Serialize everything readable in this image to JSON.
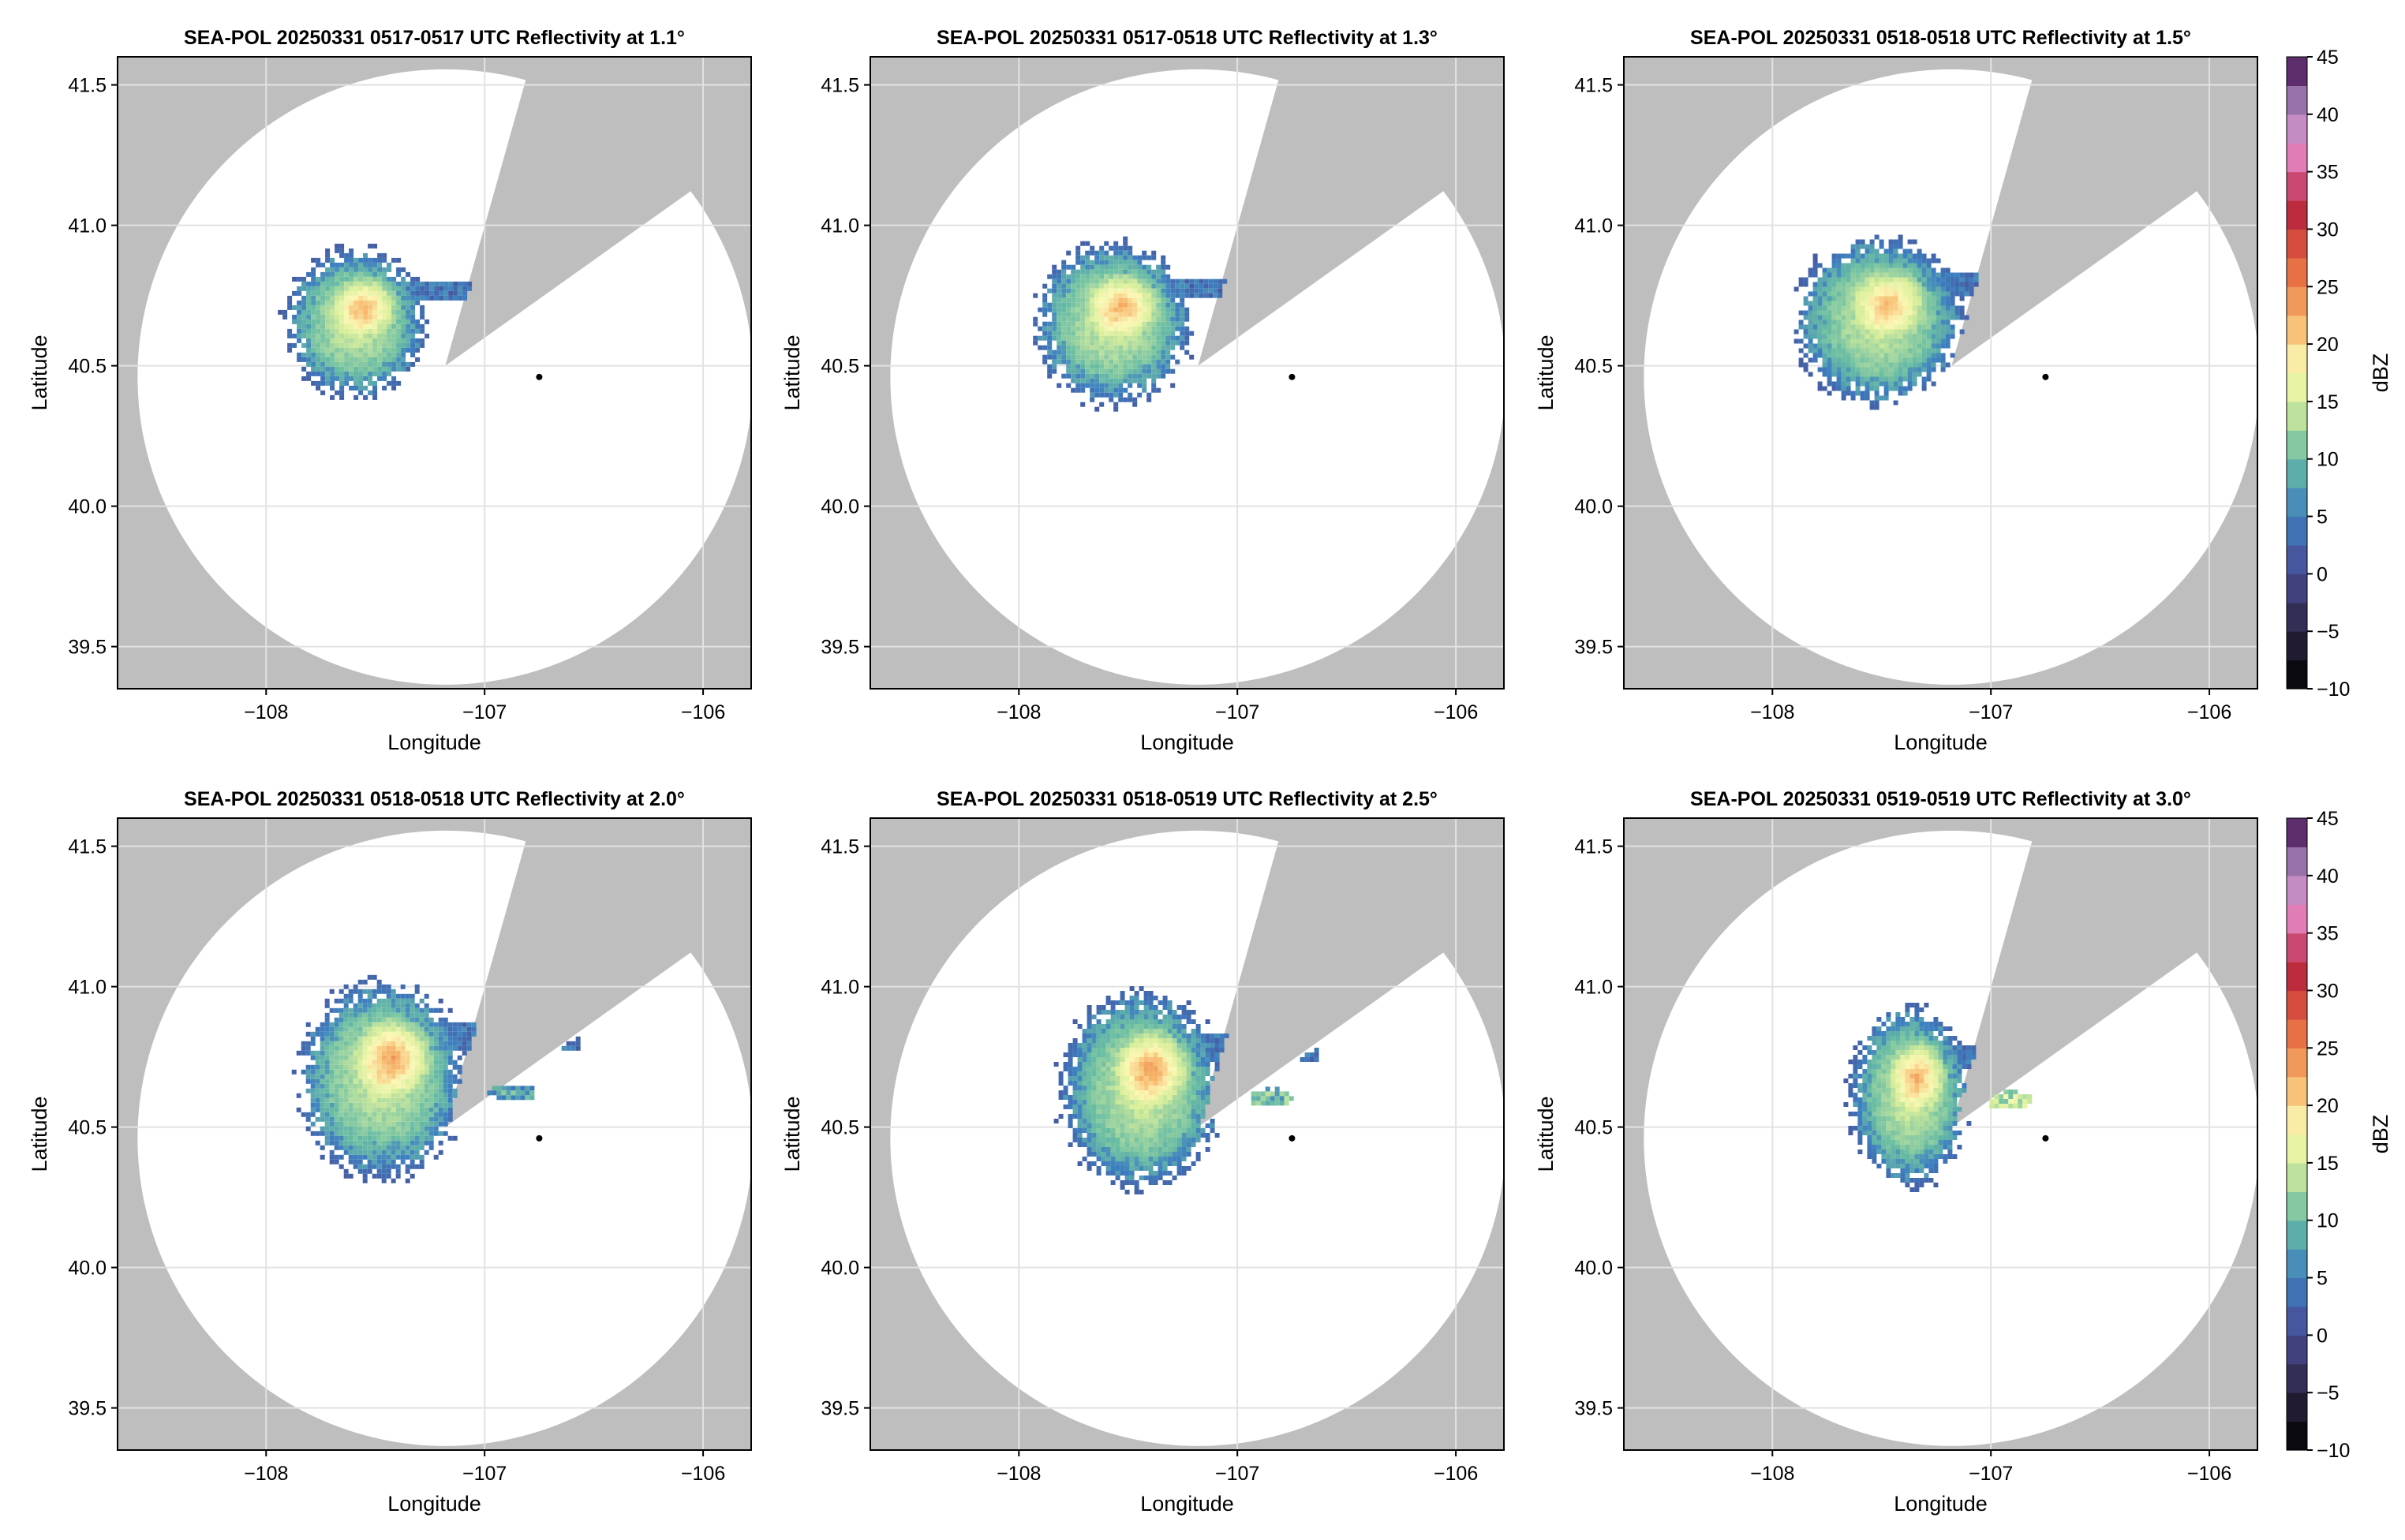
{
  "chart_data": [
    {
      "type": "heatmap",
      "title": "SEA-POL 20250331 0517-0517 UTC Reflectivity at 1.1°",
      "xlabel": "Longitude",
      "ylabel": "Latitude",
      "xlim": [
        -108.68,
        -105.78
      ],
      "ylim": [
        39.35,
        41.6
      ],
      "xticks": [
        -108,
        -107,
        -106
      ],
      "yticks": [
        39.5,
        40.0,
        40.5,
        41.0,
        41.5
      ],
      "xticklabels": [
        "−108",
        "−107",
        "−106"
      ],
      "yticklabels": [
        "39.5",
        "40.0",
        "40.5",
        "41.0",
        "41.5"
      ],
      "grid": true,
      "radar_site": {
        "lon": -106.75,
        "lat": 40.46
      },
      "blocked_sector": {
        "apex": [
          -107.18,
          40.5
        ],
        "edge1": [
          -106.8,
          41.55
        ],
        "edge2": [
          -106.06,
          41.12
        ]
      },
      "echo": {
        "center": [
          -107.6,
          40.66
        ],
        "rx": 0.3,
        "ry": 0.25,
        "max_dbz": 23,
        "tail_lon": -106.98,
        "small_cells": []
      }
    },
    {
      "type": "heatmap",
      "title": "SEA-POL 20250331 0517-0518 UTC Reflectivity at 1.3°",
      "xlabel": "Longitude",
      "ylabel": "Latitude",
      "xlim": [
        -108.68,
        -105.78
      ],
      "ylim": [
        39.35,
        41.6
      ],
      "xticks": [
        -108,
        -107,
        -106
      ],
      "yticks": [
        39.5,
        40.0,
        40.5,
        41.0,
        41.5
      ],
      "xticklabels": [
        "−108",
        "−107",
        "−106"
      ],
      "yticklabels": [
        "39.5",
        "40.0",
        "40.5",
        "41.0",
        "41.5"
      ],
      "grid": true,
      "radar_site": {
        "lon": -106.75,
        "lat": 40.46
      },
      "blocked_sector": {
        "apex": [
          -107.18,
          40.5
        ],
        "edge1": [
          -106.8,
          41.55
        ],
        "edge2": [
          -106.06,
          41.12
        ]
      },
      "echo": {
        "center": [
          -107.58,
          40.66
        ],
        "rx": 0.34,
        "ry": 0.27,
        "max_dbz": 23,
        "tail_lon": -106.93,
        "small_cells": []
      }
    },
    {
      "type": "heatmap",
      "title": "SEA-POL 20250331 0518-0518 UTC Reflectivity at 1.5°",
      "xlabel": "Longitude",
      "ylabel": "Latitude",
      "xlim": [
        -108.68,
        -105.78
      ],
      "ylim": [
        39.35,
        41.6
      ],
      "xticks": [
        -108,
        -107,
        -106
      ],
      "yticks": [
        39.5,
        40.0,
        40.5,
        41.0,
        41.5
      ],
      "xticklabels": [
        "−108",
        "−107",
        "−106"
      ],
      "yticklabels": [
        "39.5",
        "40.0",
        "40.5",
        "41.0",
        "41.5"
      ],
      "grid": true,
      "radar_site": {
        "lon": -106.75,
        "lat": 40.46
      },
      "blocked_sector": {
        "apex": [
          -107.18,
          40.5
        ],
        "edge1": [
          -106.8,
          41.55
        ],
        "edge2": [
          -106.06,
          41.12
        ]
      },
      "echo": {
        "center": [
          -107.52,
          40.67
        ],
        "rx": 0.36,
        "ry": 0.28,
        "max_dbz": 22,
        "tail_lon": -106.9,
        "small_cells": []
      }
    },
    {
      "type": "heatmap",
      "title": "SEA-POL 20250331 0518-0518 UTC Reflectivity at 2.0°",
      "xlabel": "Longitude",
      "ylabel": "Latitude",
      "xlim": [
        -108.68,
        -105.78
      ],
      "ylim": [
        39.35,
        41.6
      ],
      "xticks": [
        -108,
        -107,
        -106
      ],
      "yticks": [
        39.5,
        40.0,
        40.5,
        41.0,
        41.5
      ],
      "xticklabels": [
        "−108",
        "−107",
        "−106"
      ],
      "yticklabels": [
        "39.5",
        "40.0",
        "40.5",
        "41.0",
        "41.5"
      ],
      "grid": true,
      "radar_site": {
        "lon": -106.75,
        "lat": 40.46
      },
      "blocked_sector": {
        "apex": [
          -107.18,
          40.5
        ],
        "edge1": [
          -106.8,
          41.55
        ],
        "edge2": [
          -106.06,
          41.12
        ]
      },
      "echo": {
        "center": [
          -107.48,
          40.68
        ],
        "rx": 0.36,
        "ry": 0.33,
        "max_dbz": 24,
        "tail_lon": -106.6,
        "small_cells": [
          [
            -106.88,
            40.63,
            8
          ]
        ]
      }
    },
    {
      "type": "heatmap",
      "title": "SEA-POL 20250331 0518-0519 UTC Reflectivity at 2.5°",
      "xlabel": "Longitude",
      "ylabel": "Latitude",
      "xlim": [
        -108.68,
        -105.78
      ],
      "ylim": [
        39.35,
        41.6
      ],
      "xticks": [
        -108,
        -107,
        -106
      ],
      "yticks": [
        39.5,
        40.0,
        40.5,
        41.0,
        41.5
      ],
      "xticklabels": [
        "−108",
        "−107",
        "−106"
      ],
      "yticklabels": [
        "39.5",
        "40.0",
        "40.5",
        "41.0",
        "41.5"
      ],
      "grid": true,
      "radar_site": {
        "lon": -106.75,
        "lat": 40.46
      },
      "blocked_sector": {
        "apex": [
          -107.18,
          40.5
        ],
        "edge1": [
          -106.8,
          41.55
        ],
        "edge2": [
          -106.06,
          41.12
        ]
      },
      "echo": {
        "center": [
          -107.45,
          40.64
        ],
        "rx": 0.35,
        "ry": 0.33,
        "max_dbz": 24,
        "tail_lon": -106.68,
        "small_cells": [
          [
            -106.85,
            40.61,
            10
          ]
        ]
      }
    },
    {
      "type": "heatmap",
      "title": "SEA-POL 20250331 0519-0519 UTC Reflectivity at 3.0°",
      "xlabel": "Longitude",
      "ylabel": "Latitude",
      "xlim": [
        -108.68,
        -105.78
      ],
      "ylim": [
        39.35,
        41.6
      ],
      "xticks": [
        -108,
        -107,
        -106
      ],
      "yticks": [
        39.5,
        40.0,
        40.5,
        41.0,
        41.5
      ],
      "xticklabels": [
        "−108",
        "−107",
        "−106"
      ],
      "yticklabels": [
        "39.5",
        "40.0",
        "40.5",
        "41.0",
        "41.5"
      ],
      "grid": true,
      "radar_site": {
        "lon": -106.75,
        "lat": 40.46
      },
      "blocked_sector": {
        "apex": [
          -107.18,
          40.5
        ],
        "edge1": [
          -106.8,
          41.55
        ],
        "edge2": [
          -106.06,
          41.12
        ]
      },
      "echo": {
        "center": [
          -107.38,
          40.62
        ],
        "rx": 0.26,
        "ry": 0.3,
        "max_dbz": 23,
        "tail_lon": -106.9,
        "small_cells": [
          [
            -106.92,
            40.6,
            14
          ]
        ]
      }
    }
  ],
  "colorbar": {
    "label": "dBZ",
    "min": -10,
    "max": 45,
    "step": 2.5,
    "ticks": [
      -10,
      -5,
      0,
      5,
      10,
      15,
      20,
      25,
      30,
      35,
      40,
      45
    ],
    "ticklabels": [
      "−10",
      "−5",
      "0",
      "5",
      "10",
      "15",
      "20",
      "25",
      "30",
      "35",
      "40",
      "45"
    ],
    "stops": [
      [
        -10,
        "#000000"
      ],
      [
        -5,
        "#2a2440"
      ],
      [
        0,
        "#4a4a94"
      ],
      [
        5,
        "#3d7fc0"
      ],
      [
        10,
        "#68bca4"
      ],
      [
        15,
        "#d8ee9a"
      ],
      [
        18,
        "#fbf8b4"
      ],
      [
        22,
        "#f7b56a"
      ],
      [
        27,
        "#e4643f"
      ],
      [
        32,
        "#b5223b"
      ],
      [
        36,
        "#e57ab6"
      ],
      [
        40,
        "#b694c9"
      ],
      [
        45,
        "#3f0a4e"
      ]
    ]
  },
  "colors": {
    "no_data": "#bebebe",
    "coverage": "#ffffff",
    "grid": "#e2e2e2",
    "site_marker": "#000000"
  }
}
